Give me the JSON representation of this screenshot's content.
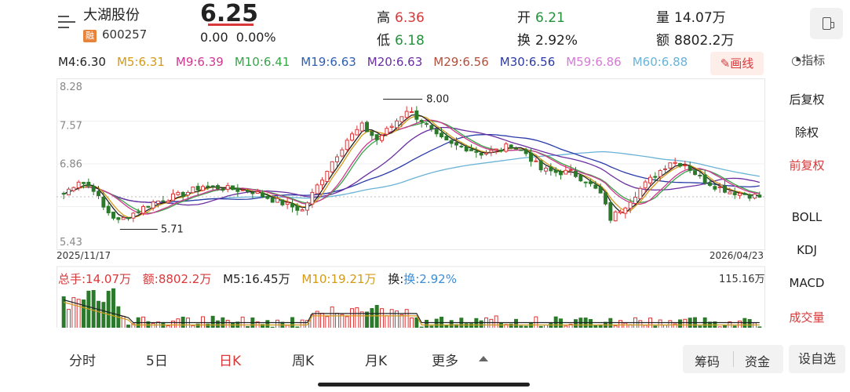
{
  "header": {
    "name": "大湖股份",
    "tag": "融",
    "code": "600257",
    "price": "6.25",
    "change": "0.00",
    "change_pct": "0.00%",
    "high_label": "高",
    "high": "6.36",
    "low_label": "低",
    "low": "6.18",
    "open_label": "开",
    "open": "6.21",
    "turnover_label": "换",
    "turnover": "2.92%",
    "volume_label": "量",
    "volume": "14.07万",
    "amount_label": "额",
    "amount": "8802.2万"
  },
  "ma": [
    {
      "label": "M4:6.30",
      "color": "#222222"
    },
    {
      "label": "M5:6.31",
      "color": "#d49a1a"
    },
    {
      "label": "M9:6.39",
      "color": "#d0378f"
    },
    {
      "label": "M10:6.41",
      "color": "#39a34a"
    },
    {
      "label": "M19:6.63",
      "color": "#2f5fb0"
    },
    {
      "label": "M20:6.63",
      "color": "#6a2ea0"
    },
    {
      "label": "M29:6.56",
      "color": "#b0503a"
    },
    {
      "label": "M30:6.56",
      "color": "#2a3aa8"
    },
    {
      "label": "M59:6.86",
      "color": "#d57bd6"
    },
    {
      "label": "M60:6.88",
      "color": "#6ab3d6"
    }
  ],
  "draw_label": "画线",
  "indicator_label": "指标",
  "side": {
    "items": [
      "后复权",
      "除权",
      "前复权",
      "BOLL",
      "KDJ",
      "MACD",
      "成交量"
    ]
  },
  "chart_data": {
    "type": "candlestick",
    "y_ticks": [
      "8.28",
      "7.57",
      "6.86",
      "",
      "5.43"
    ],
    "ylim": [
      5.43,
      8.28
    ],
    "x_start": "2025/11/17",
    "x_end": "2026/04/23",
    "annotation_high": "8.00",
    "annotation_low": "5.71",
    "colors": {
      "up": "#d9383a",
      "down": "#2b7a2b"
    }
  },
  "volume": {
    "total": "总手:14.07万",
    "amount": "额:8802.2万",
    "m5": "M5:16.45万",
    "m10": "M10:19.21万",
    "turnover": "换:2.92%",
    "max": "115.16万"
  },
  "tabs": [
    "分时",
    "5日",
    "日K",
    "周K",
    "月K",
    "更多"
  ],
  "seg": [
    "筹码",
    "资金"
  ],
  "self_select": "设自选"
}
